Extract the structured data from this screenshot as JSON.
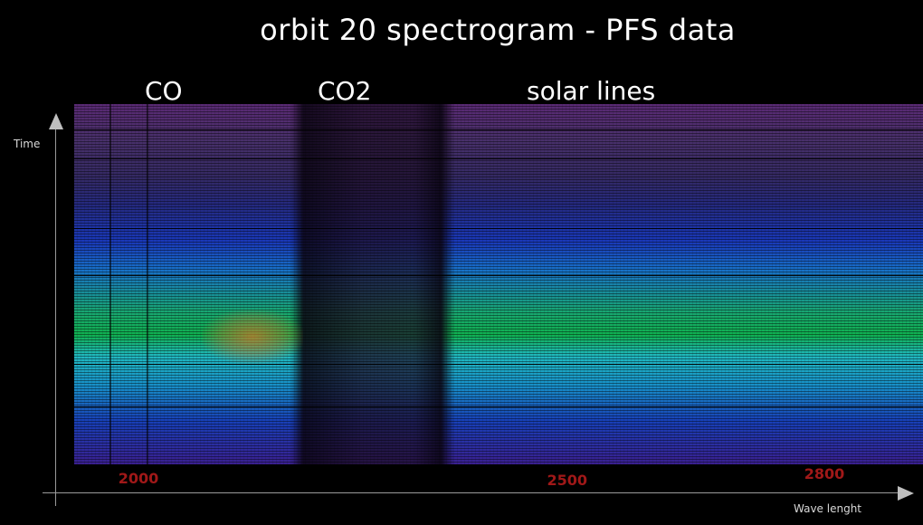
{
  "chart_data": {
    "type": "heatmap",
    "title": "orbit 20 spectrogram - PFS data",
    "xlabel": "Wave lenght",
    "ylabel": "Time",
    "x_ticks": [
      2000,
      2500,
      2800
    ],
    "xlim": [
      1925,
      2915
    ],
    "annotations": [
      {
        "text": "CO",
        "x": 2020
      },
      {
        "text": "CO2",
        "x": 2245
      },
      {
        "text": "solar lines",
        "x": 2585
      }
    ]
  },
  "colors": {
    "background": "#000000",
    "tick_label": "#a01818",
    "axis": "#9a9a9a"
  }
}
